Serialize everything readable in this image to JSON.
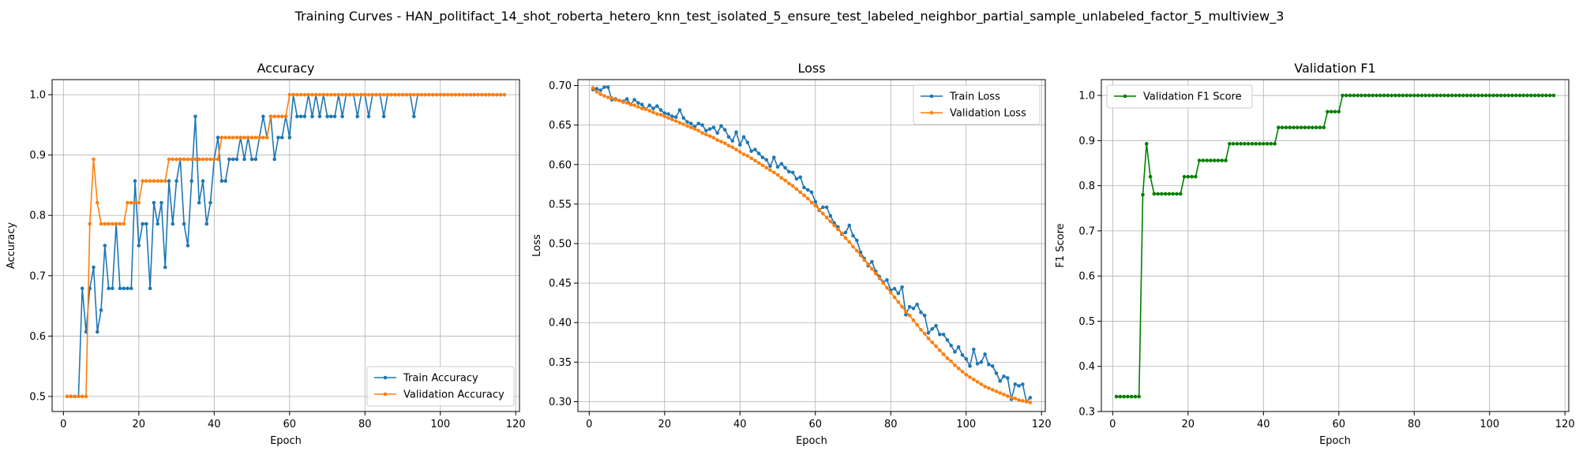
{
  "suptitle": "Training Curves - HAN_politifact_14_shot_roberta_hetero_knn_test_isolated_5_ensure_test_labeled_neighbor_partial_sample_unlabeled_factor_5_multiview_3",
  "colors": {
    "blue": "#1f77b4",
    "orange": "#ff7f0e",
    "green": "#008000",
    "grid": "#b0b0b0",
    "axis": "#000000"
  },
  "chart_data": [
    {
      "type": "line",
      "title": "Accuracy",
      "xlabel": "Epoch",
      "ylabel": "Accuracy",
      "xlim": [
        -3,
        121
      ],
      "ylim": [
        0.475,
        1.025
      ],
      "xticks": [
        0,
        20,
        40,
        60,
        80,
        100,
        120
      ],
      "yticks": [
        0.5,
        0.6,
        0.7,
        0.8,
        0.9,
        1.0
      ],
      "ytick_labels": [
        "0.5",
        "0.6",
        "0.7",
        "0.8",
        "0.9",
        "1.0"
      ],
      "grid": true,
      "legend_position": "lower right",
      "series": [
        {
          "name": "Train Accuracy",
          "color": "#1f77b4",
          "x_start": 1,
          "values": [
            0.5,
            0.5,
            0.5,
            0.5,
            0.679,
            0.607,
            0.679,
            0.714,
            0.607,
            0.643,
            0.75,
            0.679,
            0.679,
            0.786,
            0.679,
            0.679,
            0.679,
            0.679,
            0.857,
            0.75,
            0.786,
            0.786,
            0.679,
            0.821,
            0.786,
            0.821,
            0.714,
            0.857,
            0.786,
            0.857,
            0.893,
            0.786,
            0.75,
            0.857,
            0.964,
            0.821,
            0.857,
            0.786,
            0.821,
            0.893,
            0.929,
            0.857,
            0.857,
            0.893,
            0.893,
            0.893,
            0.929,
            0.893,
            0.929,
            0.893,
            0.893,
            0.929,
            0.964,
            0.929,
            0.964,
            0.893,
            0.929,
            0.929,
            0.964,
            0.929,
            1.0,
            0.964,
            0.964,
            0.964,
            1.0,
            0.964,
            1.0,
            0.964,
            1.0,
            0.964,
            0.964,
            0.964,
            1.0,
            0.964,
            1.0,
            1.0,
            1.0,
            0.964,
            1.0,
            1.0,
            0.964,
            1.0,
            1.0,
            1.0,
            0.964,
            1.0,
            1.0,
            1.0,
            1.0,
            1.0,
            1.0,
            1.0,
            0.964,
            1.0,
            1.0,
            1.0,
            1.0,
            1.0,
            1.0,
            1.0,
            1.0,
            1.0,
            1.0,
            1.0,
            1.0,
            1.0,
            1.0,
            1.0,
            1.0,
            1.0,
            1.0,
            1.0,
            1.0,
            1.0,
            1.0,
            1.0,
            1.0
          ]
        },
        {
          "name": "Validation Accuracy",
          "color": "#ff7f0e",
          "x_start": 1,
          "values": [
            0.5,
            0.5,
            0.5,
            0.5,
            0.5,
            0.5,
            0.786,
            0.893,
            0.821,
            0.786,
            0.786,
            0.786,
            0.786,
            0.786,
            0.786,
            0.786,
            0.821,
            0.821,
            0.821,
            0.821,
            0.857,
            0.857,
            0.857,
            0.857,
            0.857,
            0.857,
            0.857,
            0.893,
            0.893,
            0.893,
            0.893,
            0.893,
            0.893,
            0.893,
            0.893,
            0.893,
            0.893,
            0.893,
            0.893,
            0.893,
            0.893,
            0.929,
            0.929,
            0.929,
            0.929,
            0.929,
            0.929,
            0.929,
            0.929,
            0.929,
            0.929,
            0.929,
            0.929,
            0.929,
            0.964,
            0.964,
            0.964,
            0.964,
            0.964,
            1.0,
            1.0,
            1.0,
            1.0,
            1.0,
            1.0,
            1.0,
            1.0,
            1.0,
            1.0,
            1.0,
            1.0,
            1.0,
            1.0,
            1.0,
            1.0,
            1.0,
            1.0,
            1.0,
            1.0,
            1.0,
            1.0,
            1.0,
            1.0,
            1.0,
            1.0,
            1.0,
            1.0,
            1.0,
            1.0,
            1.0,
            1.0,
            1.0,
            1.0,
            1.0,
            1.0,
            1.0,
            1.0,
            1.0,
            1.0,
            1.0,
            1.0,
            1.0,
            1.0,
            1.0,
            1.0,
            1.0,
            1.0,
            1.0,
            1.0,
            1.0,
            1.0,
            1.0,
            1.0,
            1.0,
            1.0,
            1.0,
            1.0
          ]
        }
      ]
    },
    {
      "type": "line",
      "title": "Loss",
      "xlabel": "Epoch",
      "ylabel": "Loss",
      "xlim": [
        -3,
        121
      ],
      "ylim": [
        0.2875,
        0.7075
      ],
      "xticks": [
        0,
        20,
        40,
        60,
        80,
        100,
        120
      ],
      "yticks": [
        0.3,
        0.35,
        0.4,
        0.45,
        0.5,
        0.55,
        0.6,
        0.65,
        0.7
      ],
      "ytick_labels": [
        "0.30",
        "0.35",
        "0.40",
        "0.45",
        "0.50",
        "0.55",
        "0.60",
        "0.65",
        "0.70"
      ],
      "grid": true,
      "legend_position": "upper right",
      "series": [
        {
          "name": "Train Loss",
          "color": "#1f77b4",
          "x_start": 1,
          "values": [
            0.695,
            0.696,
            0.694,
            0.698,
            0.698,
            0.682,
            0.683,
            0.681,
            0.68,
            0.683,
            0.676,
            0.682,
            0.678,
            0.676,
            0.67,
            0.675,
            0.671,
            0.674,
            0.669,
            0.665,
            0.664,
            0.661,
            0.66,
            0.669,
            0.659,
            0.654,
            0.652,
            0.648,
            0.652,
            0.65,
            0.643,
            0.645,
            0.647,
            0.64,
            0.649,
            0.644,
            0.635,
            0.63,
            0.641,
            0.625,
            0.635,
            0.628,
            0.617,
            0.619,
            0.614,
            0.609,
            0.606,
            0.598,
            0.609,
            0.597,
            0.601,
            0.596,
            0.591,
            0.59,
            0.582,
            0.584,
            0.571,
            0.568,
            0.565,
            0.553,
            0.542,
            0.546,
            0.546,
            0.535,
            0.526,
            0.521,
            0.512,
            0.514,
            0.523,
            0.51,
            0.504,
            0.489,
            0.481,
            0.472,
            0.477,
            0.465,
            0.458,
            0.451,
            0.454,
            0.441,
            0.443,
            0.437,
            0.445,
            0.41,
            0.42,
            0.418,
            0.423,
            0.413,
            0.409,
            0.387,
            0.392,
            0.396,
            0.385,
            0.385,
            0.378,
            0.371,
            0.363,
            0.369,
            0.359,
            0.354,
            0.345,
            0.366,
            0.348,
            0.35,
            0.36,
            0.347,
            0.345,
            0.336,
            0.326,
            0.332,
            0.33,
            0.303,
            0.322,
            0.32,
            0.322,
            0.3,
            0.305
          ]
        },
        {
          "name": "Validation Loss",
          "color": "#ff7f0e",
          "x_start": 1,
          "values": [
            0.697,
            0.692,
            0.689,
            0.687,
            0.685,
            0.684,
            0.682,
            0.681,
            0.679,
            0.678,
            0.676,
            0.675,
            0.673,
            0.671,
            0.67,
            0.668,
            0.666,
            0.664,
            0.663,
            0.661,
            0.659,
            0.657,
            0.655,
            0.653,
            0.651,
            0.649,
            0.647,
            0.645,
            0.643,
            0.64,
            0.638,
            0.636,
            0.634,
            0.631,
            0.629,
            0.627,
            0.624,
            0.622,
            0.619,
            0.616,
            0.613,
            0.611,
            0.608,
            0.605,
            0.602,
            0.599,
            0.596,
            0.593,
            0.59,
            0.587,
            0.583,
            0.58,
            0.576,
            0.573,
            0.569,
            0.565,
            0.561,
            0.557,
            0.552,
            0.548,
            0.543,
            0.538,
            0.533,
            0.528,
            0.523,
            0.518,
            0.513,
            0.507,
            0.502,
            0.496,
            0.491,
            0.485,
            0.479,
            0.474,
            0.468,
            0.462,
            0.456,
            0.45,
            0.444,
            0.438,
            0.432,
            0.426,
            0.42,
            0.414,
            0.409,
            0.403,
            0.397,
            0.391,
            0.386,
            0.38,
            0.375,
            0.37,
            0.365,
            0.36,
            0.355,
            0.351,
            0.346,
            0.342,
            0.338,
            0.334,
            0.331,
            0.328,
            0.325,
            0.322,
            0.319,
            0.317,
            0.315,
            0.313,
            0.311,
            0.309,
            0.307,
            0.305,
            0.304,
            0.302,
            0.301,
            0.3,
            0.299
          ]
        }
      ]
    },
    {
      "type": "line",
      "title": "Validation F1",
      "xlabel": "Epoch",
      "ylabel": "F1 Score",
      "xlim": [
        -3,
        121
      ],
      "ylim": [
        0.3,
        1.035
      ],
      "xticks": [
        0,
        20,
        40,
        60,
        80,
        100,
        120
      ],
      "yticks": [
        0.3,
        0.4,
        0.5,
        0.6,
        0.7,
        0.8,
        0.9,
        1.0
      ],
      "ytick_labels": [
        "0.3",
        "0.4",
        "0.5",
        "0.6",
        "0.7",
        "0.8",
        "0.9",
        "1.0"
      ],
      "grid": true,
      "legend_position": "upper left",
      "series": [
        {
          "name": "Validation F1 Score",
          "color": "#008000",
          "x_start": 1,
          "values": [
            0.333,
            0.333,
            0.333,
            0.333,
            0.333,
            0.333,
            0.333,
            0.78,
            0.893,
            0.82,
            0.782,
            0.782,
            0.782,
            0.782,
            0.782,
            0.782,
            0.782,
            0.782,
            0.82,
            0.82,
            0.82,
            0.82,
            0.856,
            0.856,
            0.856,
            0.856,
            0.856,
            0.856,
            0.856,
            0.856,
            0.893,
            0.893,
            0.893,
            0.893,
            0.893,
            0.893,
            0.893,
            0.893,
            0.893,
            0.893,
            0.893,
            0.893,
            0.893,
            0.929,
            0.929,
            0.929,
            0.929,
            0.929,
            0.929,
            0.929,
            0.929,
            0.929,
            0.929,
            0.929,
            0.929,
            0.929,
            0.964,
            0.964,
            0.964,
            0.964,
            1.0,
            1.0,
            1.0,
            1.0,
            1.0,
            1.0,
            1.0,
            1.0,
            1.0,
            1.0,
            1.0,
            1.0,
            1.0,
            1.0,
            1.0,
            1.0,
            1.0,
            1.0,
            1.0,
            1.0,
            1.0,
            1.0,
            1.0,
            1.0,
            1.0,
            1.0,
            1.0,
            1.0,
            1.0,
            1.0,
            1.0,
            1.0,
            1.0,
            1.0,
            1.0,
            1.0,
            1.0,
            1.0,
            1.0,
            1.0,
            1.0,
            1.0,
            1.0,
            1.0,
            1.0,
            1.0,
            1.0,
            1.0,
            1.0,
            1.0,
            1.0,
            1.0,
            1.0,
            1.0,
            1.0,
            1.0,
            1.0
          ]
        }
      ]
    }
  ]
}
